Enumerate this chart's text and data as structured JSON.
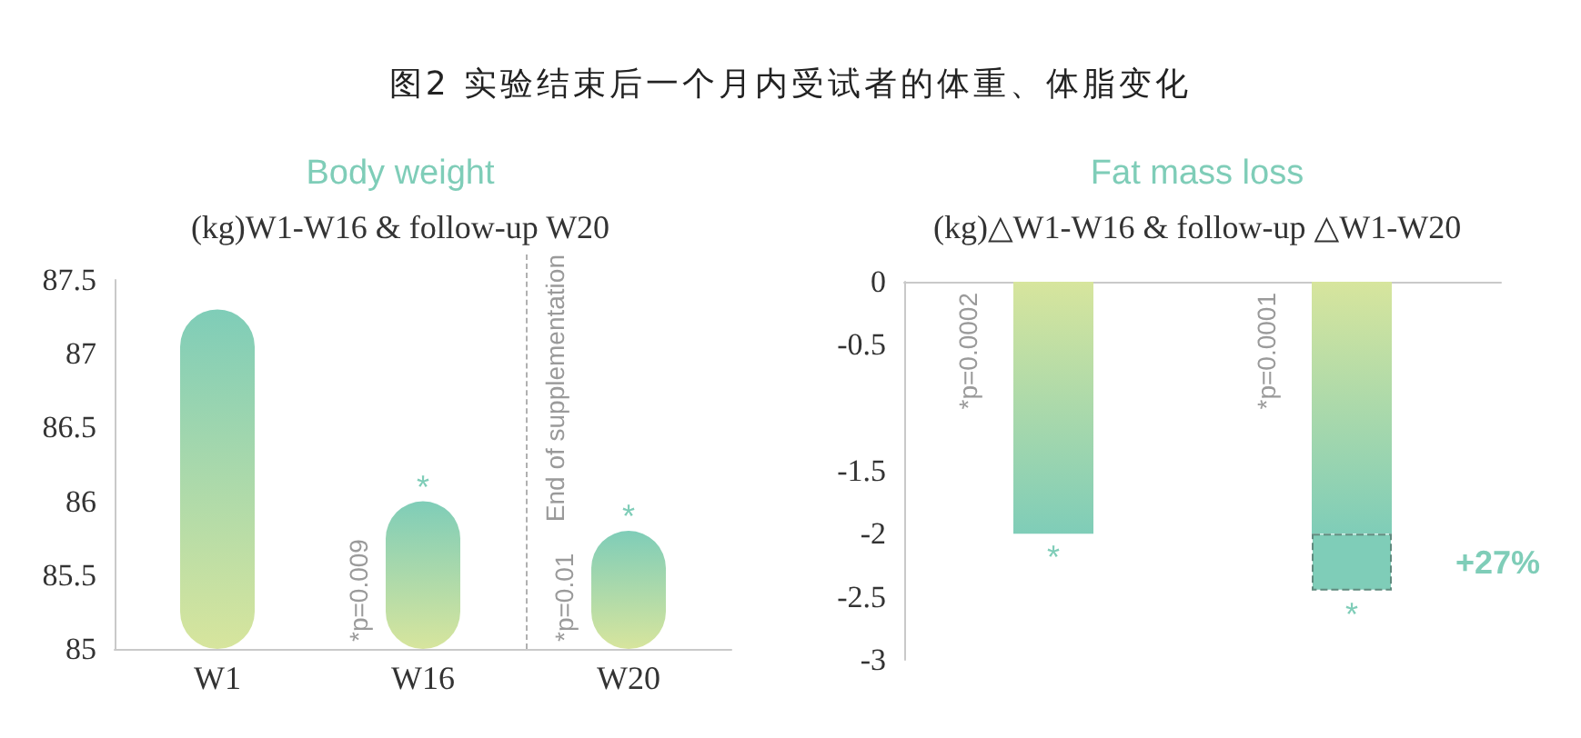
{
  "chart_data": [
    {
      "type": "other",
      "title": "图2 实验结束后一个月内受试者的体重、体脂变化"
    },
    {
      "type": "bar",
      "title": "Body weight",
      "subtitle": "(kg)W1-W16 & follow-up W20",
      "categories": [
        "W1",
        "W16",
        "W20"
      ],
      "values": [
        87.3,
        86.0,
        85.8
      ],
      "color": "#7fcdb8",
      "ylim": [
        85,
        87.5
      ],
      "yticks": [
        85,
        85.5,
        86,
        86.5,
        87,
        87.5
      ],
      "annotations": [
        {
          "text": "*",
          "x": "W16",
          "y": 86.0
        },
        {
          "text": "*",
          "x": "W20",
          "y": 85.8
        },
        {
          "text": "*p=0.009",
          "x": "W16",
          "y": 85
        },
        {
          "text": "*p=0.01",
          "x": "W20",
          "y": 85
        },
        "End of supplementation"
      ]
    },
    {
      "type": "bar",
      "title": "Fat mass loss",
      "subtitle": "(kg)△W1-W16 & follow-up △W1-W20",
      "categories": [
        null,
        null
      ],
      "stacked": true,
      "series": [
        {
          "color": "#7fcdb8",
          "values": [
            -2.0,
            -2.0
          ]
        },
        {
          "color": "#7fcdb8",
          "values": [
            null,
            -0.45
          ],
          "line_style": "dashed"
        }
      ],
      "ylim": [
        -3,
        0
      ],
      "yticks": [
        0,
        -0.5,
        -1.5,
        -2,
        -2.5,
        -3
      ],
      "annotations": [
        "*p=0.0002",
        "*p=0.0001",
        {
          "text": "*",
          "y": -2.0
        },
        {
          "text": "*",
          "y": -2.45
        },
        "+27%"
      ]
    }
  ]
}
